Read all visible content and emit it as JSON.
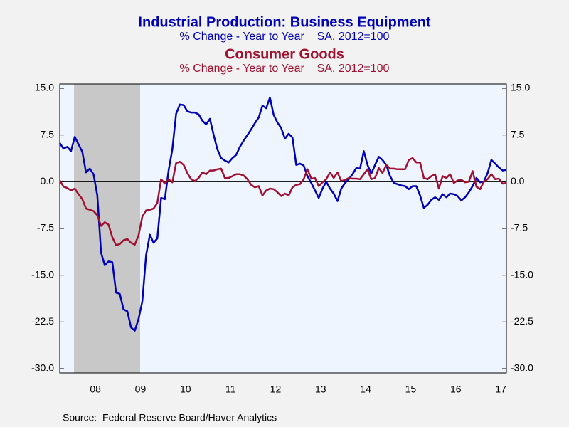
{
  "chart_data": {
    "type": "line",
    "source": "Source:  Federal Reserve Board/Haver Analytics",
    "categories": [
      null,
      null,
      null,
      null,
      null,
      null,
      null,
      null,
      null,
      "08",
      null,
      null,
      null,
      null,
      null,
      null,
      null,
      null,
      null,
      null,
      null,
      "09",
      null,
      null,
      null,
      null,
      null,
      null,
      null,
      null,
      null,
      null,
      null,
      "10",
      null,
      null,
      null,
      null,
      null,
      null,
      null,
      null,
      null,
      null,
      null,
      "11",
      null,
      null,
      null,
      null,
      null,
      null,
      null,
      null,
      null,
      null,
      null,
      "12",
      null,
      null,
      null,
      null,
      null,
      null,
      null,
      null,
      null,
      null,
      null,
      "13",
      null,
      null,
      null,
      null,
      null,
      null,
      null,
      null,
      null,
      null,
      null,
      "14",
      null,
      null,
      null,
      null,
      null,
      null,
      null,
      null,
      null,
      null,
      null,
      "15",
      null,
      null,
      null,
      null,
      null,
      null,
      null,
      null,
      null,
      null,
      null,
      "16",
      null,
      null,
      null,
      null,
      null,
      null,
      null,
      null,
      null,
      null,
      null,
      "17",
      null,
      null
    ],
    "ylim": [
      -30,
      15
    ],
    "yticks": [
      {
        "value": -30,
        "label": "-30.0"
      },
      -22.5,
      {
        "value": -15,
        "label": "-15.0"
      },
      -7.5,
      {
        "value": 0,
        "label": "0.0"
      },
      7.5,
      {
        "value": 15,
        "label": "15.0"
      }
    ],
    "y2lim": [
      -30,
      15
    ],
    "y2ticks": [
      {
        "value": -30,
        "label": "-30.0"
      },
      -22.5,
      {
        "value": -15,
        "label": "-15.0"
      },
      -7.5,
      {
        "value": 0,
        "label": "0.0"
      },
      7.5,
      {
        "value": 15,
        "label": "15.0"
      }
    ],
    "series": [
      {
        "name": "Industrial Production: Business Equipment",
        "subtitle": "% Change - Year to Year    SA, 2012=100",
        "color": "#0000b4",
        "values": [
          6.2,
          5.3,
          5.6,
          4.9,
          7.2,
          6.0,
          4.8,
          1.5,
          2.1,
          1.2,
          -2.2,
          -11.4,
          -13.4,
          -12.8,
          -12.9,
          -17.8,
          -18.0,
          -20.5,
          -20.8,
          -23.4,
          -23.9,
          -22.0,
          -19.2,
          -11.8,
          -8.5,
          -9.8,
          -9.1,
          -2.6,
          -2.8,
          1.8,
          5.2,
          10.9,
          12.4,
          12.3,
          11.3,
          11.1,
          11.1,
          10.8,
          9.8,
          9.2,
          10.1,
          7.5,
          5.2,
          3.8,
          3.4,
          3.1,
          3.8,
          4.3,
          5.6,
          6.6,
          7.5,
          8.4,
          9.4,
          10.3,
          12.2,
          11.8,
          13.5,
          10.7,
          9.5,
          8.6,
          6.9,
          7.7,
          7.1,
          2.7,
          2.9,
          2.6,
          0.9,
          -0.2,
          -1.4,
          -2.6,
          -1.1,
          0.0,
          -1.1,
          -1.9,
          -3.1,
          -1.1,
          -0.2,
          0.4,
          1.2,
          2.2,
          2.1,
          4.9,
          2.7,
          1.3,
          2.7,
          4.0,
          3.5,
          2.7,
          0.9,
          -0.2,
          -0.4,
          -0.6,
          -0.7,
          -1.2,
          -0.7,
          -0.7,
          -2.2,
          -4.2,
          -3.7,
          -2.9,
          -2.5,
          -2.9,
          -2.0,
          -2.5,
          -1.9,
          -2.0,
          -2.3,
          -3.0,
          -2.5,
          -1.7,
          -0.7,
          0.6,
          -0.1,
          0.0,
          1.4,
          3.5,
          2.9,
          2.3,
          1.8,
          1.9
        ]
      },
      {
        "name": "Consumer Goods",
        "subtitle": "% Change - Year to Year    SA, 2012=100",
        "color": "#a01030",
        "values": [
          0.2,
          -0.8,
          -1.0,
          -1.4,
          -1.1,
          -2.0,
          -2.8,
          -4.3,
          -4.5,
          -4.7,
          -5.4,
          -7.1,
          -6.5,
          -6.9,
          -8.9,
          -10.2,
          -10.0,
          -9.4,
          -9.2,
          -9.8,
          -10.1,
          -8.6,
          -5.6,
          -4.6,
          -4.5,
          -4.3,
          -3.4,
          0.4,
          -0.3,
          0.4,
          -0.1,
          3.0,
          3.2,
          2.7,
          1.4,
          0.4,
          0.1,
          0.6,
          1.5,
          1.2,
          1.8,
          1.8,
          2.0,
          2.1,
          0.6,
          0.6,
          0.9,
          1.2,
          1.2,
          1.0,
          0.4,
          -0.5,
          -0.9,
          -0.7,
          -2.2,
          -1.4,
          -1.1,
          -1.2,
          -1.7,
          -2.3,
          -1.9,
          -2.2,
          -0.9,
          -0.5,
          -0.4,
          0.4,
          2.0,
          0.5,
          0.6,
          -0.7,
          -0.1,
          0.4,
          1.5,
          0.6,
          1.5,
          0.1,
          0.3,
          0.6,
          0.5,
          0.5,
          0.4,
          1.2,
          2.0,
          0.4,
          0.6,
          2.2,
          1.4,
          2.7,
          2.1,
          2.1,
          2.0,
          2.0,
          2.0,
          3.5,
          3.8,
          3.1,
          3.1,
          0.6,
          0.4,
          0.9,
          1.2,
          -1.1,
          0.9,
          0.6,
          1.2,
          -0.2,
          0.2,
          0.3,
          -0.1,
          0.0,
          1.7,
          -0.8,
          -1.2,
          0.0,
          0.4,
          1.2,
          0.4,
          0.5,
          -0.3,
          -0.2
        ]
      }
    ]
  }
}
